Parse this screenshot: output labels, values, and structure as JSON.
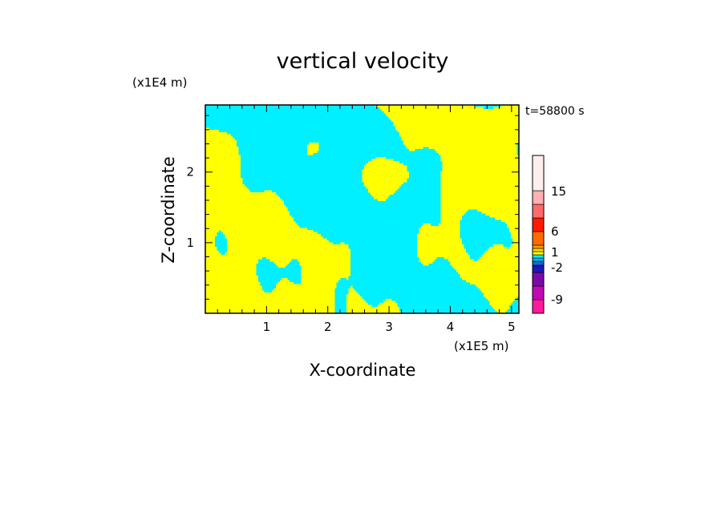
{
  "chart_data": {
    "type": "heatmap",
    "title": "vertical velocity",
    "xlabel": "X-coordinate",
    "ylabel": "Z-coordinate",
    "x_unit": "(x1E5 m)",
    "y_unit": "(x1E4 m)",
    "time_label": "t=58800 s",
    "xlim": [
      0,
      5.12
    ],
    "ylim": [
      0,
      2.95
    ],
    "x_ticks": [
      1,
      2,
      3,
      4,
      5
    ],
    "y_ticks": [
      1,
      2
    ],
    "field_description": "alternating positive (yellow) and negative (cyan) vertical velocity bands tilted up toward +x, finer structure near the bottom and right side",
    "dominant_levels": {
      "positive": "0 to 1",
      "negative": "-1 to 0"
    },
    "colorbar": {
      "tick_labels": [
        "15",
        "6",
        "1",
        "-2",
        "-9"
      ],
      "levels": [
        {
          "color": "#ff1a9c"
        },
        {
          "color": "#c10ab6"
        },
        {
          "color": "#7a0aa8"
        },
        {
          "color": "#1a1ab8"
        },
        {
          "color": "#1c63d6"
        },
        {
          "color": "#00b8ff"
        },
        {
          "color": "#00f0ff"
        },
        {
          "color": "#ffff00"
        },
        {
          "color": "#ffd800"
        },
        {
          "color": "#ff9c00"
        },
        {
          "color": "#ff6a00"
        },
        {
          "color": "#ff1a00"
        },
        {
          "color": "#ff6a6a"
        },
        {
          "color": "#ffb0b0"
        },
        {
          "color": "#ffeeee"
        }
      ]
    },
    "colors": {
      "positive": "#ffff00",
      "negative": "#00f0ff"
    }
  }
}
